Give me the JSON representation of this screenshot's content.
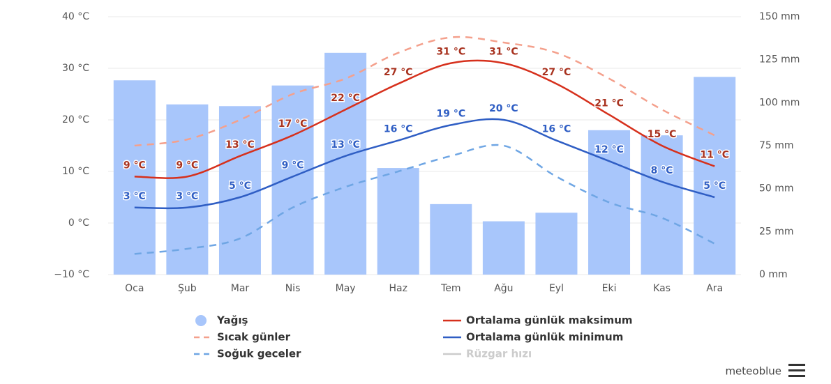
{
  "chart_data": {
    "type": "combo",
    "categories": [
      "Oca",
      "Şub",
      "Mar",
      "Nis",
      "May",
      "Haz",
      "Tem",
      "Ağu",
      "Eyl",
      "Eki",
      "Kas",
      "Ara"
    ],
    "ylim": [
      -10,
      40
    ],
    "yticks": [
      {
        "value": -10,
        "label": "−10 °C"
      },
      {
        "value": 0,
        "label": "0 °C"
      },
      {
        "value": 10,
        "label": "10 °C"
      },
      {
        "value": 20,
        "label": "20 °C"
      },
      {
        "value": 30,
        "label": "30 °C"
      },
      {
        "value": 40,
        "label": "40 °C"
      }
    ],
    "y2lim": [
      0,
      150
    ],
    "y2ticks": [
      {
        "value": 0,
        "label": "0 mm"
      },
      {
        "value": 25,
        "label": "25 mm"
      },
      {
        "value": 50,
        "label": "50 mm"
      },
      {
        "value": 75,
        "label": "75 mm"
      },
      {
        "value": 100,
        "label": "100 mm"
      },
      {
        "value": 125,
        "label": "125 mm"
      },
      {
        "value": 150,
        "label": "150 mm"
      }
    ],
    "grid": true,
    "series": [
      {
        "name": "Yağış",
        "type": "bar",
        "axis": "y2",
        "color": "#a8c6fb",
        "values": [
          113,
          99,
          98,
          110,
          129,
          62,
          41,
          31,
          36,
          84,
          81,
          115
        ]
      },
      {
        "name": "Sıcak günler",
        "type": "line",
        "dash": true,
        "color": "#f4a08c",
        "values": [
          15,
          16.2,
          20,
          25,
          28,
          33,
          36,
          35,
          33,
          28,
          22,
          17
        ]
      },
      {
        "name": "Soğuk geceler",
        "type": "line",
        "dash": true,
        "color": "#6fa6e4",
        "values": [
          -6,
          -5,
          -3,
          3,
          7,
          10,
          13,
          15,
          9,
          4,
          1,
          -4
        ]
      },
      {
        "name": "Ortalama günlük maksimum",
        "type": "line",
        "color": "#d6301c",
        "label_color": "#a8321f",
        "values": [
          9,
          9,
          13,
          17,
          22,
          27,
          31,
          31,
          27,
          21,
          15,
          11
        ],
        "value_labels": [
          "9 °C",
          "9 °C",
          "13 °C",
          "17 °C",
          "22 °C",
          "27 °C",
          "31 °C",
          "31 °C",
          "27 °C",
          "21 °C",
          "15 °C",
          "11 °C"
        ]
      },
      {
        "name": "Ortalama günlük minimum",
        "type": "line",
        "color": "#2f5ec4",
        "label_color": "#2f5ec4",
        "values": [
          3,
          3,
          5,
          9,
          13,
          16,
          19,
          20,
          16,
          12,
          8,
          5
        ],
        "value_labels": [
          "3 °C",
          "3 °C",
          "5 °C",
          "9 °C",
          "13 °C",
          "16 °C",
          "19 °C",
          "20 °C",
          "16 °C",
          "12 °C",
          "8 °C",
          "5 °C"
        ]
      },
      {
        "name": "Rüzgar hızı",
        "type": "line",
        "hidden": true,
        "color": "#cccccc"
      }
    ],
    "brand": "meteoblue"
  }
}
